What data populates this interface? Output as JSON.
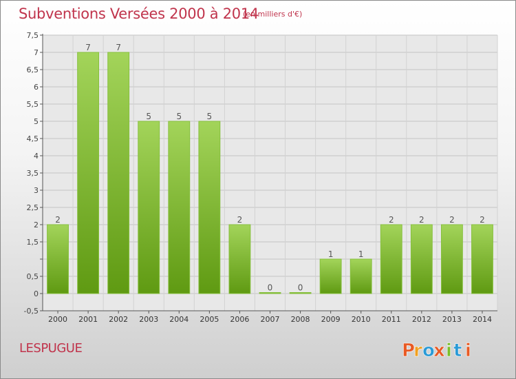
{
  "page": {
    "title": "Subventions Versées 2000 à 2014",
    "unit_note": "(en milliers d'€)",
    "town": "LESPUGUE",
    "logo_text": "Proxiti"
  },
  "colors": {
    "title": "#c0344c",
    "bar_light": "#a3d45a",
    "bar_dark": "#5f9a12",
    "logo_letters": [
      "#e85a24",
      "#f0a020",
      "#2a9ad6",
      "#e85a24",
      "#7bbf2a",
      "#2a9ad6",
      "#e85a24"
    ]
  },
  "chart_data": {
    "type": "bar",
    "title": "Subventions Versées 2000 à 2014",
    "subtitle": "(en milliers d'€)",
    "xlabel": "",
    "ylabel": "",
    "categories": [
      "2000",
      "2001",
      "2002",
      "2003",
      "2004",
      "2005",
      "2006",
      "2007",
      "2008",
      "2009",
      "2010",
      "2011",
      "2012",
      "2013",
      "2014"
    ],
    "values": [
      2,
      7,
      7,
      5,
      5,
      5,
      2,
      0,
      0,
      1,
      1,
      2,
      2,
      2,
      2
    ],
    "value_labels": [
      "2",
      "7",
      "7",
      "5",
      "5",
      "5",
      "2",
      "0",
      "0",
      "1",
      "1",
      "2",
      "2",
      "2",
      "2"
    ],
    "ylim": [
      -0.5,
      7.5
    ],
    "yticks": [
      -0.5,
      0,
      0.5,
      1,
      1.5,
      2,
      2.5,
      3,
      3.5,
      4,
      4.5,
      5,
      5.5,
      6,
      6.5,
      7,
      7.5
    ],
    "ytick_labels": [
      "-0,5",
      "0",
      "0,5",
      "",
      "1,5",
      "2",
      "2,5",
      "3",
      "3,5",
      "4",
      "4,5",
      "5",
      "5,5",
      "6",
      "6,5",
      "7",
      "7,5"
    ],
    "grid": true,
    "legend": "none"
  }
}
